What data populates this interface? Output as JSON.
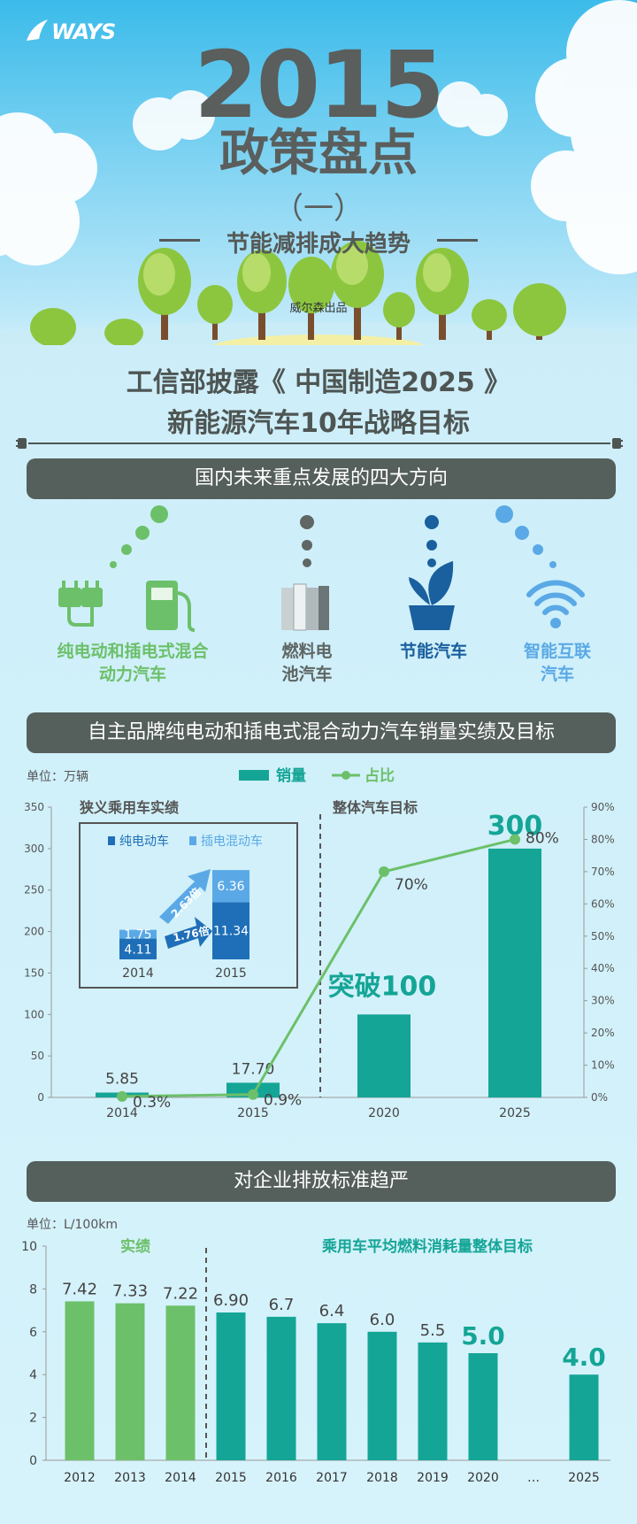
{
  "header": {
    "logo": "WAYS",
    "year": "2015",
    "title": "政策盘点",
    "part": "（一）",
    "subtitle": "节能减排成大趋势",
    "publisher": "威尔森出品"
  },
  "section1": {
    "title_line1": "工信部披露《 中国制造2025 》",
    "title_line2": "新能源汽车10年战略目标",
    "band": "国内未来重点发展的四大方向",
    "directions": [
      {
        "line1": "纯电动和插电式混合",
        "line2": "动力汽车",
        "color": "#6cc06a",
        "icon": "plug-and-charger-icon"
      },
      {
        "line1": "燃料电",
        "line2": "池汽车",
        "color": "#5f6664",
        "icon": "battery-cells-icon"
      },
      {
        "line1": "节能汽车",
        "line2": "",
        "color": "#1a5f9e",
        "icon": "leaf-icon"
      },
      {
        "line1": "智能互联",
        "line2": "汽车",
        "color": "#5aa9e6",
        "icon": "wifi-icon"
      }
    ]
  },
  "section2": {
    "band": "自主品牌纯电动和插电式混合动力汽车销量实绩及目标",
    "unit": "单位：万辆",
    "legend_sales": "销量",
    "legend_share": "占比",
    "label_actual": "狭义乘用车实绩",
    "label_target": "整体汽车目标",
    "label_breakthrough": "突破100",
    "inset_legend_ev": "纯电动车",
    "inset_legend_phev": "插电混动车",
    "inset_growth_ev": "1.76倍",
    "inset_growth_phev": "2.63倍",
    "colors": {
      "sales": "#14a596",
      "share": "#6cc06a",
      "ev": "#1f6fb8",
      "phev": "#5aa9e6"
    }
  },
  "section3": {
    "band": "对企业排放标准趋严",
    "unit": "单位：L/100km",
    "label_actual": "实绩",
    "label_target": "乘用车平均燃料消耗量整体目标",
    "colors": {
      "actual": "#6cc06a",
      "target": "#14a596"
    }
  },
  "chart_data": [
    {
      "type": "bar",
      "title": "",
      "categories": [
        "2014",
        "2015",
        "2020",
        "2025"
      ],
      "series": [
        {
          "name": "销量",
          "values": [
            5.85,
            17.7,
            100,
            300
          ],
          "value_labels": [
            "5.85",
            "17.70",
            "",
            "300"
          ]
        },
        {
          "name": "占比",
          "type": "line",
          "axis": "right",
          "values": [
            0.3,
            0.9,
            70,
            80
          ],
          "value_labels": [
            "0.3%",
            "0.9%",
            "70%",
            "80%"
          ]
        }
      ],
      "ylim": [
        0,
        350
      ],
      "yticks": [
        "0",
        "50",
        "100",
        "150",
        "200",
        "250",
        "300",
        "350"
      ],
      "y2lim": [
        0,
        90
      ],
      "y2ticks": [
        "0%",
        "10%",
        "20%",
        "30%",
        "40%",
        "50%",
        "60%",
        "70%",
        "80%",
        "90%"
      ],
      "legend": "top-center",
      "grid": false
    },
    {
      "type": "bar",
      "stacked": true,
      "title": "狭义乘用车实绩",
      "categories": [
        "2014",
        "2015"
      ],
      "series": [
        {
          "name": "纯电动车",
          "values": [
            4.11,
            11.34
          ]
        },
        {
          "name": "插电混动车",
          "values": [
            1.75,
            6.36
          ]
        }
      ],
      "legend": "top"
    },
    {
      "type": "bar",
      "title": "",
      "categories": [
        "2012",
        "2013",
        "2014",
        "2015",
        "2016",
        "2017",
        "2018",
        "2019",
        "2020",
        "…",
        "2025"
      ],
      "values": [
        7.42,
        7.33,
        7.22,
        6.9,
        6.7,
        6.4,
        6.0,
        5.5,
        5.0,
        null,
        4.0
      ],
      "value_labels": [
        "7.42",
        "7.33",
        "7.22",
        "6.90",
        "6.7",
        "6.4",
        "6.0",
        "5.5",
        "5.0",
        "",
        "4.0"
      ],
      "ylim": [
        0,
        10
      ],
      "yticks": [
        "0",
        "2",
        "4",
        "6",
        "8",
        "10"
      ],
      "grid": false
    }
  ]
}
